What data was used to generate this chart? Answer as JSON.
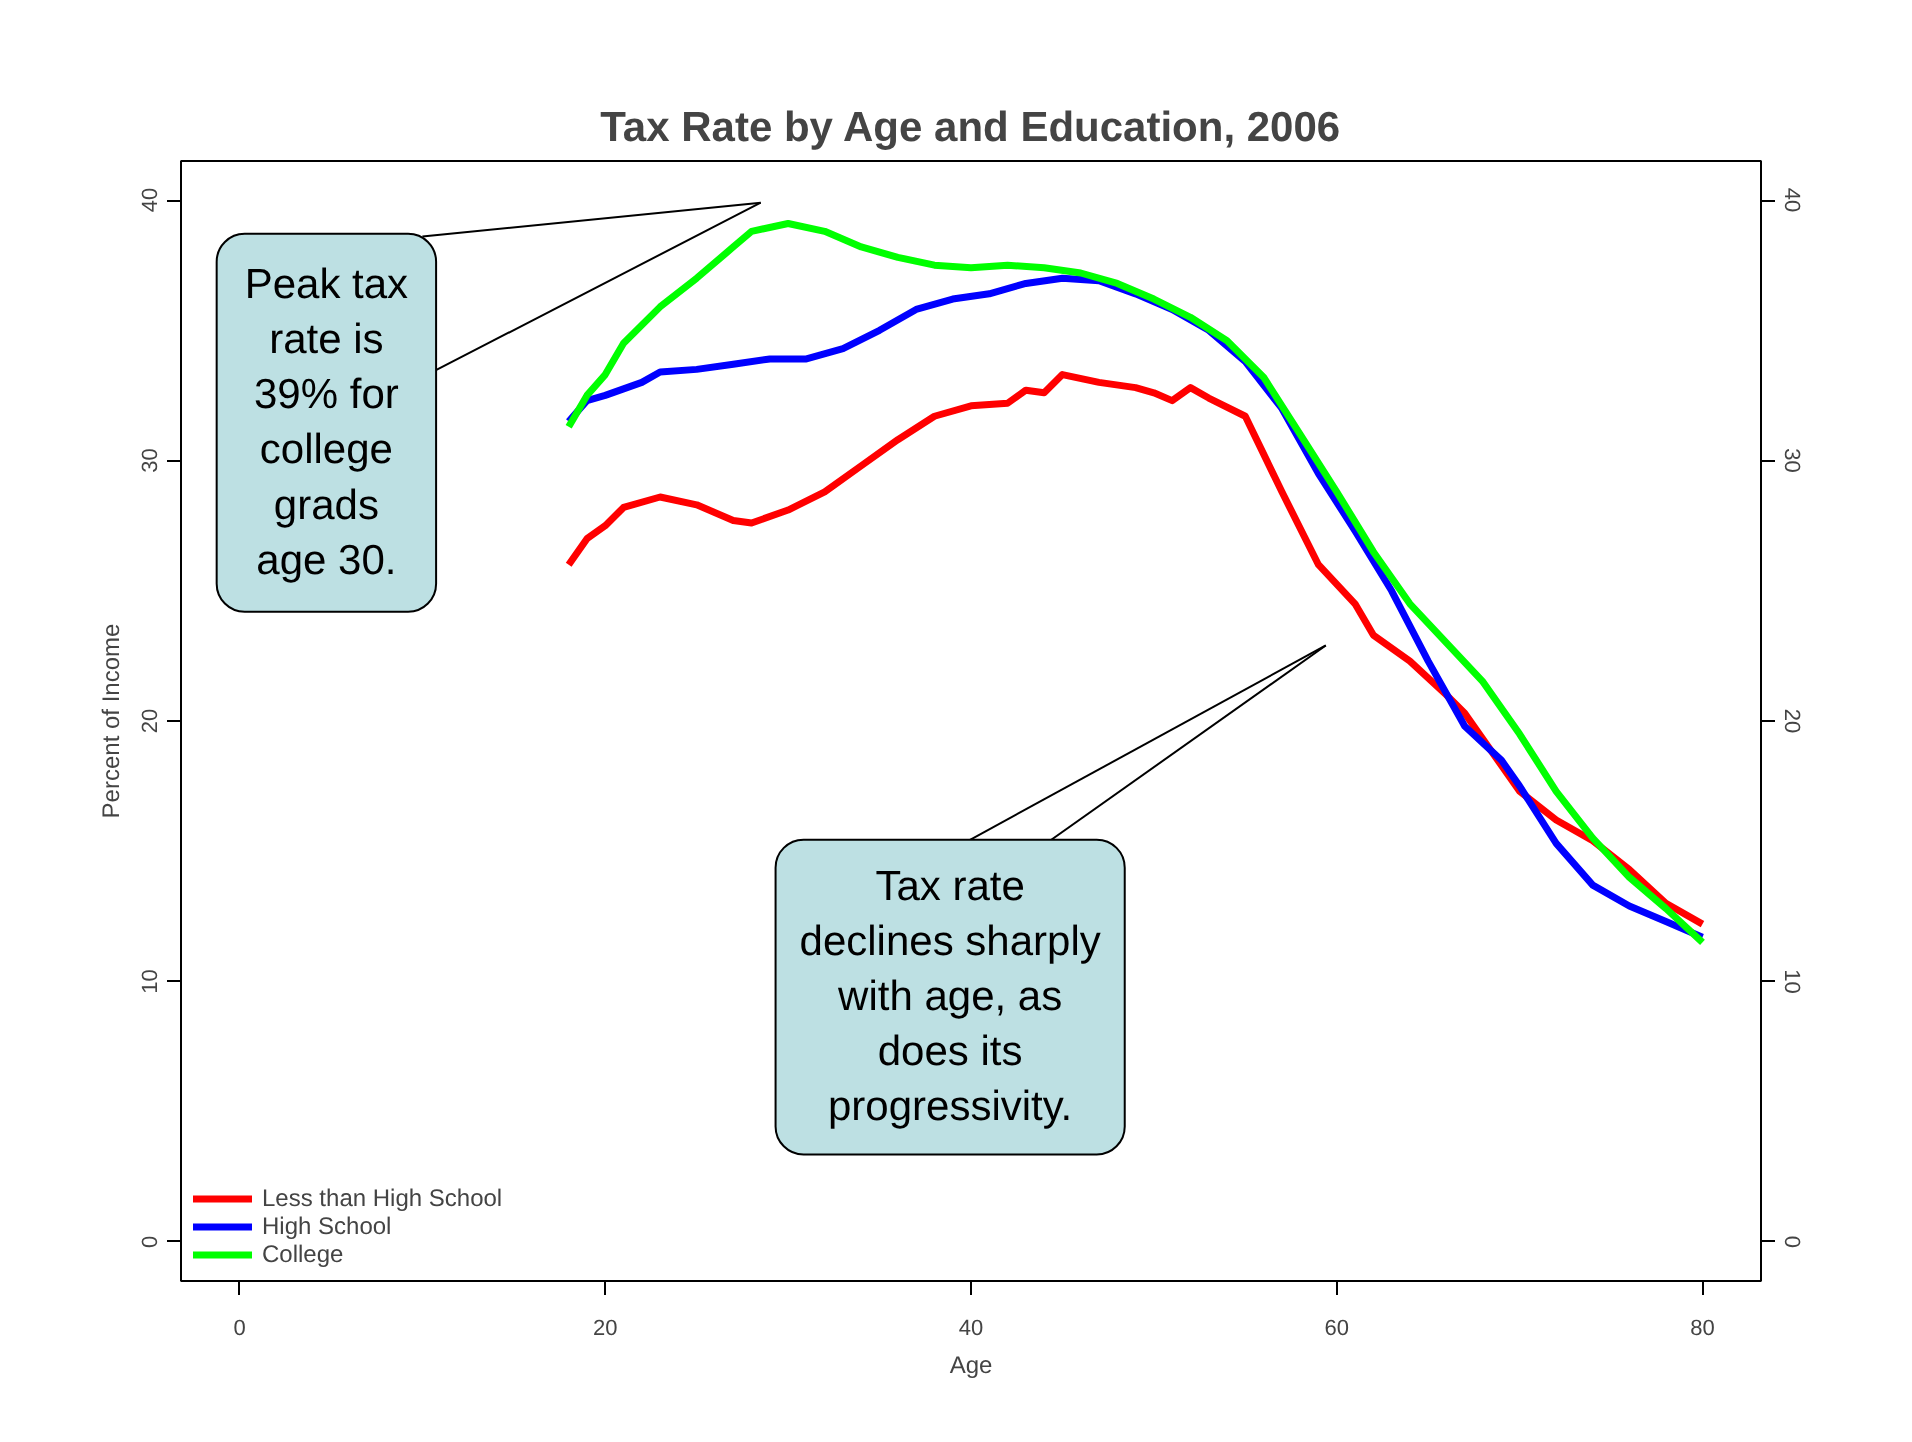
{
  "chart_data": {
    "type": "line",
    "title": "Tax Rate by Age and Education, 2006",
    "xlabel": "Age",
    "ylabel": "Percent of Income",
    "xlim": [
      -3.2,
      83.2
    ],
    "ylim": [
      -1.5,
      41.5
    ],
    "xticks": [
      0,
      20,
      40,
      60,
      80
    ],
    "yticks": [
      0,
      10,
      20,
      30,
      40
    ],
    "y2lim": [
      -1.5,
      41.5
    ],
    "y2ticks": [
      0,
      10,
      20,
      30,
      40
    ],
    "legend": "bottom left",
    "grid": false,
    "line_style": "solid",
    "marker": "none",
    "series": [
      {
        "name": "Less than High School",
        "color": "#ff0000",
        "x": [
          18,
          19,
          20,
          21,
          23,
          25,
          27,
          28,
          30,
          32,
          34,
          36,
          38,
          40,
          42,
          43,
          44,
          45,
          47,
          49,
          50,
          51,
          52,
          53,
          55,
          57,
          59,
          61,
          62,
          64,
          66,
          67,
          69,
          70,
          72,
          74,
          76,
          78,
          80
        ],
        "values": [
          26.0,
          27.0,
          27.5,
          28.2,
          28.6,
          28.3,
          27.7,
          27.6,
          28.1,
          28.8,
          29.8,
          30.8,
          31.7,
          32.1,
          32.2,
          32.7,
          32.6,
          33.3,
          33.0,
          32.8,
          32.6,
          32.3,
          32.8,
          32.4,
          31.7,
          28.8,
          26.0,
          24.5,
          23.3,
          22.3,
          21.0,
          20.3,
          18.3,
          17.3,
          16.2,
          15.4,
          14.3,
          13.0,
          12.2
        ]
      },
      {
        "name": "High School",
        "color": "#0000ff",
        "x": [
          18,
          19,
          20,
          22,
          23,
          25,
          27,
          29,
          31,
          33,
          35,
          37,
          39,
          41,
          43,
          45,
          47,
          49,
          51,
          53,
          55,
          57,
          59,
          61,
          63,
          65,
          67,
          69,
          70,
          72,
          74,
          76,
          78,
          80
        ],
        "values": [
          31.5,
          32.3,
          32.5,
          33.0,
          33.4,
          33.5,
          33.7,
          33.9,
          33.9,
          34.3,
          35.0,
          35.8,
          36.2,
          36.4,
          36.8,
          37.0,
          36.9,
          36.4,
          35.8,
          35.0,
          33.8,
          32.0,
          29.5,
          27.3,
          25.0,
          22.3,
          19.8,
          18.5,
          17.5,
          15.3,
          13.7,
          12.9,
          12.3,
          11.7
        ]
      },
      {
        "name": "College",
        "color": "#00ff00",
        "x": [
          18,
          19,
          20,
          21,
          23,
          25,
          27,
          28,
          30,
          32,
          34,
          36,
          38,
          40,
          42,
          44,
          46,
          48,
          50,
          52,
          54,
          56,
          58,
          60,
          62,
          64,
          66,
          68,
          70,
          72,
          74,
          76,
          78,
          80
        ],
        "values": [
          31.3,
          32.5,
          33.3,
          34.5,
          35.9,
          37.0,
          38.2,
          38.8,
          39.1,
          38.8,
          38.2,
          37.8,
          37.5,
          37.4,
          37.5,
          37.4,
          37.2,
          36.8,
          36.2,
          35.5,
          34.6,
          33.2,
          31.0,
          28.8,
          26.5,
          24.5,
          23.0,
          21.5,
          19.5,
          17.3,
          15.5,
          14.0,
          12.8,
          11.5
        ]
      }
    ],
    "annotations": [
      "Peak tax rate is 39% for college grads age 30.",
      "Tax rate declines sharply with age, as does its progressivity."
    ]
  }
}
